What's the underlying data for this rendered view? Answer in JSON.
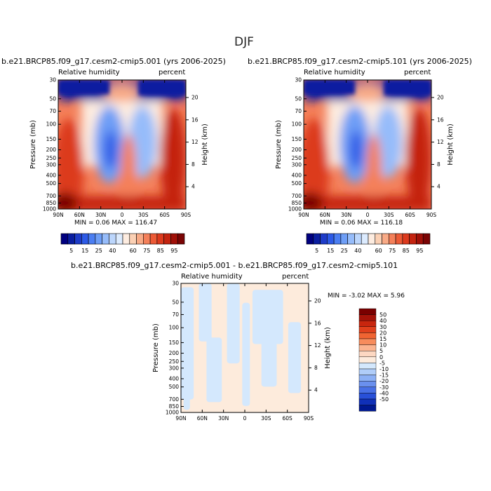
{
  "title": "DJF",
  "panels": [
    {
      "title": "b.e21.BRCP85.f09_g17.cesm2-cmip5.001 (yrs 2006-2025)",
      "left_label": "Relative humidity",
      "right_label": "percent",
      "min_max": "MIN =    0.06   MAX =  116.47"
    },
    {
      "title": "b.e21.BRCP85.f09_g17.cesm2-cmip5.101 (yrs 2006-2025)",
      "left_label": "Relative humidity",
      "right_label": "percent",
      "min_max": "MIN =    0.06   MAX =  116.18"
    },
    {
      "title": "b.e21.BRCP85.f09_g17.cesm2-cmip5.001 - b.e21.BRCP85.f09_g17.cesm2-cmip5.101",
      "left_label": "Relative humidity",
      "right_label": "percent",
      "min_max": "MIN =   -3.02   MAX =    5.96"
    }
  ],
  "chart_data": {
    "type": "heatmap",
    "xlabel": "",
    "ylabel": "Pressure (mb)",
    "y2label": "Height (km)",
    "x_ticks": [
      "90N",
      "60N",
      "30N",
      "0",
      "30S",
      "60S",
      "90S"
    ],
    "y_ticks": [
      1000,
      850,
      700,
      500,
      400,
      300,
      250,
      200,
      150,
      100,
      70,
      50,
      30
    ],
    "y2_ticks": [
      4,
      8,
      12,
      16,
      20
    ],
    "top_colorbar": {
      "labels": [
        "5",
        "15",
        "25",
        "40",
        "60",
        "75",
        "85",
        "95"
      ],
      "colors": [
        "#00007f",
        "#0a1ea0",
        "#1e3cc8",
        "#2d5ae6",
        "#4b7ef2",
        "#6e9ef6",
        "#96bcfa",
        "#bcd6fc",
        "#dcebfe",
        "#fdece0",
        "#fbd0b4",
        "#f8aa86",
        "#f4805a",
        "#ec5a36",
        "#dc3a1e",
        "#c42410",
        "#a01008",
        "#7a0404"
      ]
    },
    "diff_colorbar": {
      "labels": [
        "50",
        "40",
        "30",
        "20",
        "15",
        "10",
        "5",
        "0",
        "-5",
        "-10",
        "-15",
        "-20",
        "-30",
        "-40",
        "-50"
      ],
      "colors": [
        "#7a0000",
        "#a51208",
        "#c8260e",
        "#e0401c",
        "#f06432",
        "#f78c5c",
        "#fbb490",
        "#fdd8c2",
        "#fdebdc",
        "#d4e8fd",
        "#b0cdf9",
        "#8cb0f5",
        "#6a90ee",
        "#4870e6",
        "#2850d8",
        "#1030b8",
        "#001890"
      ]
    },
    "rh_regions": {
      "dry_tropical_nh_lower": 20,
      "dry_tropical_sh_lower": 35,
      "moist_surface": 90,
      "dry_stratosphere": 5
    },
    "diff_regions": {
      "positive": 2.5,
      "negative": -2.5
    }
  }
}
